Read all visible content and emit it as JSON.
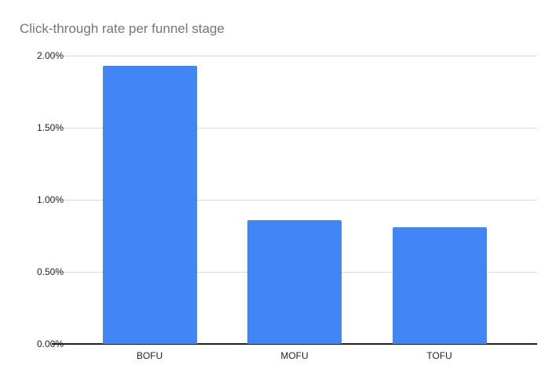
{
  "chart_data": {
    "type": "bar",
    "title": "Click-through rate per funnel stage",
    "categories": [
      "BOFU",
      "MOFU",
      "TOFU"
    ],
    "values": [
      1.93,
      0.86,
      0.81
    ],
    "unit": "%",
    "xlabel": "",
    "ylabel": "",
    "ylim": [
      0,
      2.0
    ],
    "y_ticks": [
      "2.00%",
      "1.50%",
      "1.00%",
      "0.50%",
      "0.00%"
    ],
    "y_tick_values": [
      2.0,
      1.5,
      1.0,
      0.5,
      0.0
    ],
    "grid": true,
    "legend_position": "none",
    "bar_color": "#4285f4",
    "title_color": "#757575",
    "gridline_color": "#d9d9d9",
    "axis_line_color": "#212121"
  }
}
